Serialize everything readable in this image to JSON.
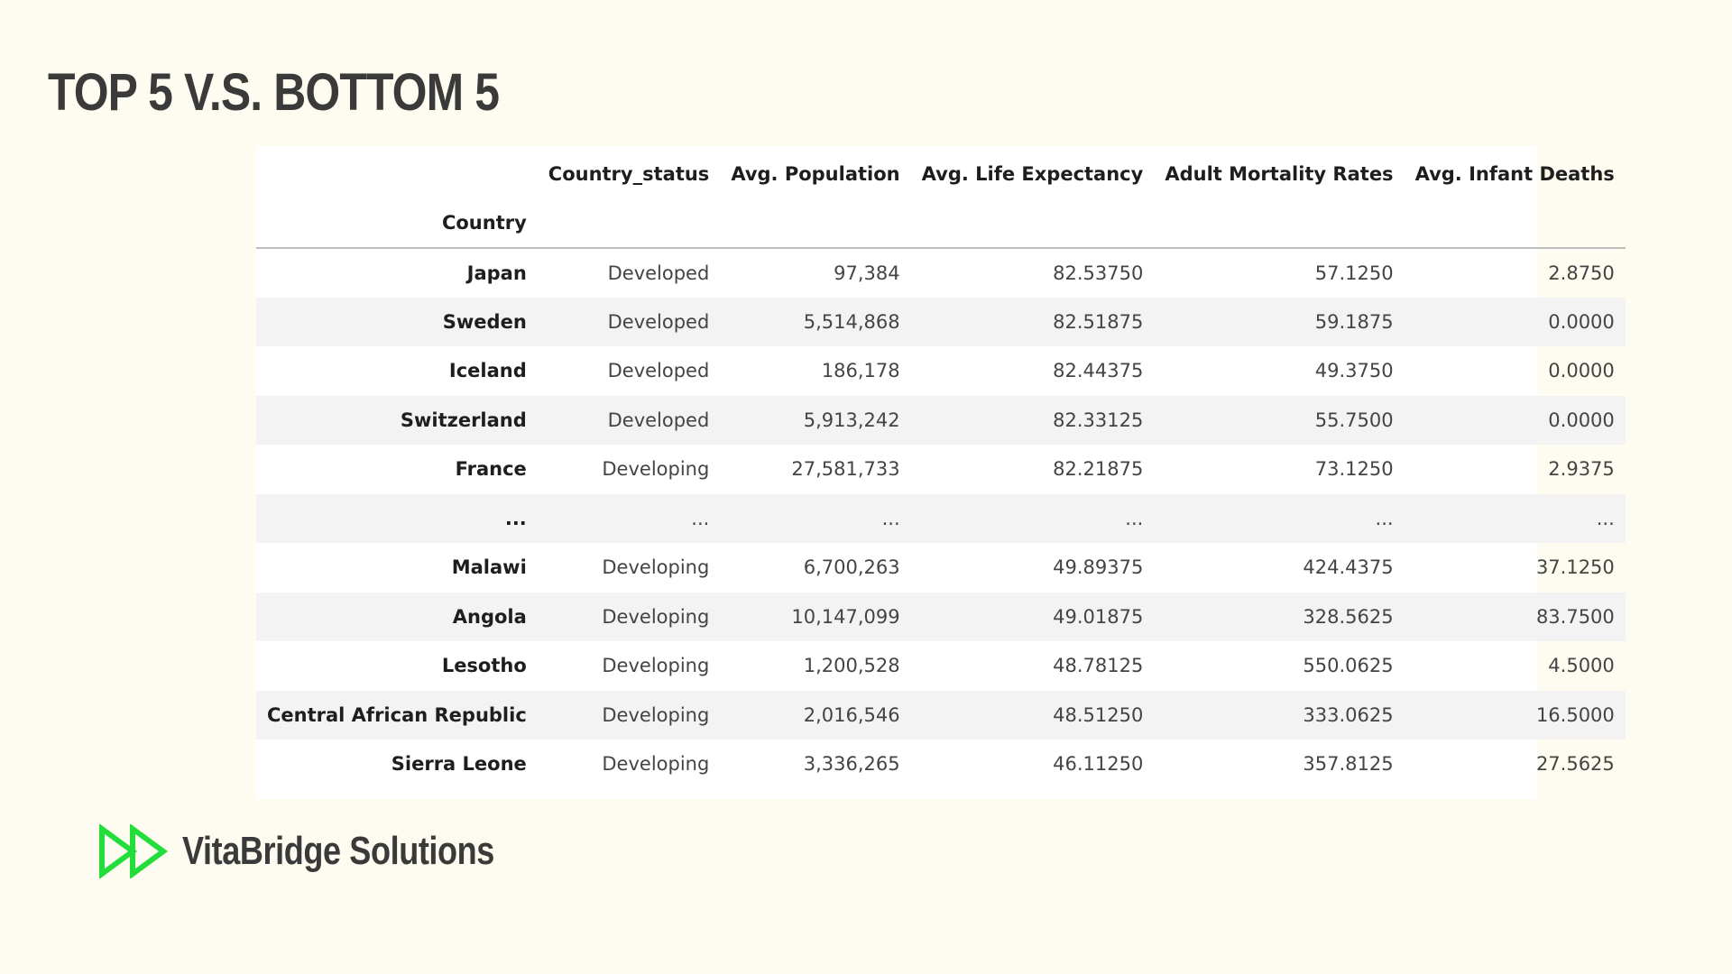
{
  "slide": {
    "title": "TOP 5 V.S. BOTTOM 5"
  },
  "table": {
    "index_name": "Country",
    "columns": [
      "Country_status",
      "Avg. Population",
      "Avg. Life Expectancy",
      "Adult Mortality Rates",
      "Avg. Infant Deaths"
    ],
    "rows": [
      {
        "country": "Japan",
        "status": "Developed",
        "population": "97,384",
        "life_expectancy": "82.53750",
        "adult_mortality": "57.1250",
        "infant_deaths": "2.8750"
      },
      {
        "country": "Sweden",
        "status": "Developed",
        "population": "5,514,868",
        "life_expectancy": "82.51875",
        "adult_mortality": "59.1875",
        "infant_deaths": "0.0000"
      },
      {
        "country": "Iceland",
        "status": "Developed",
        "population": "186,178",
        "life_expectancy": "82.44375",
        "adult_mortality": "49.3750",
        "infant_deaths": "0.0000"
      },
      {
        "country": "Switzerland",
        "status": "Developed",
        "population": "5,913,242",
        "life_expectancy": "82.33125",
        "adult_mortality": "55.7500",
        "infant_deaths": "0.0000"
      },
      {
        "country": "France",
        "status": "Developing",
        "population": "27,581,733",
        "life_expectancy": "82.21875",
        "adult_mortality": "73.1250",
        "infant_deaths": "2.9375"
      },
      {
        "country": "...",
        "status": "...",
        "population": "...",
        "life_expectancy": "...",
        "adult_mortality": "...",
        "infant_deaths": "..."
      },
      {
        "country": "Malawi",
        "status": "Developing",
        "population": "6,700,263",
        "life_expectancy": "49.89375",
        "adult_mortality": "424.4375",
        "infant_deaths": "37.1250"
      },
      {
        "country": "Angola",
        "status": "Developing",
        "population": "10,147,099",
        "life_expectancy": "49.01875",
        "adult_mortality": "328.5625",
        "infant_deaths": "83.7500"
      },
      {
        "country": "Lesotho",
        "status": "Developing",
        "population": "1,200,528",
        "life_expectancy": "48.78125",
        "adult_mortality": "550.0625",
        "infant_deaths": "4.5000"
      },
      {
        "country": "Central African Republic",
        "status": "Developing",
        "population": "2,016,546",
        "life_expectancy": "48.51250",
        "adult_mortality": "333.0625",
        "infant_deaths": "16.5000"
      },
      {
        "country": "Sierra Leone",
        "status": "Developing",
        "population": "3,336,265",
        "life_expectancy": "46.11250",
        "adult_mortality": "357.8125",
        "infant_deaths": "27.5625"
      }
    ]
  },
  "brand": {
    "name": "VitaBridge Solutions",
    "logo_icon": "fast-forward-icon",
    "logo_color": "#22dd3a"
  },
  "colors": {
    "background": "#fefcf0",
    "title": "#3a3a3a",
    "stripe": "#f3f3f3"
  }
}
